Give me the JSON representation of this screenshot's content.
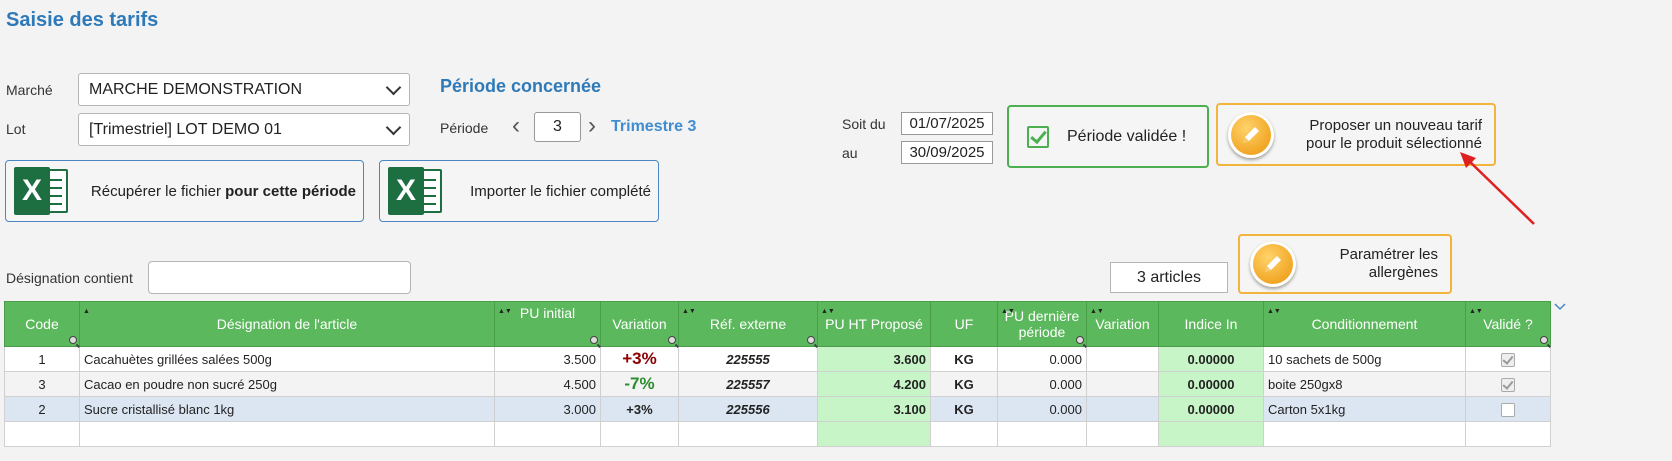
{
  "page": {
    "title": "Saisie des tarifs"
  },
  "filters": {
    "marche_label": "Marché",
    "marche_value": "MARCHE DEMONSTRATION",
    "lot_label": "Lot",
    "lot_value": "[Trimestriel] LOT DEMO 01"
  },
  "period": {
    "section_title": "Période concernée",
    "periode_label": "Période",
    "periode_value": "3",
    "trimestre": "Trimestre 3",
    "soit_du_label": "Soit du",
    "date_from": "01/07/2025",
    "au_label": "au",
    "date_to": "30/09/2025"
  },
  "buttons": {
    "recuperer_prefix": "Récupérer le fichier ",
    "recuperer_bold": "pour cette période",
    "importer": "Importer le fichier complété",
    "periode_validee": "Période validée !",
    "proposer_line1": "Proposer un nouveau tarif",
    "proposer_line2": "pour le produit sélectionné",
    "parametrer_line1": "Paramétrer les",
    "parametrer_line2": "allergènes"
  },
  "search": {
    "designation_label": "Désignation contient",
    "designation_value": "",
    "count": "3 articles"
  },
  "colors": {
    "accent": "#2e7ab8",
    "header_green": "#5cb85c",
    "arrow_red": "#e02020"
  },
  "table": {
    "headers": {
      "code": "Code",
      "designation": "Désignation de l'article",
      "pu_initial": "PU initial",
      "variation": "Variation",
      "ref_externe": "Réf. externe",
      "pu_ht_propose": "PU HT Proposé",
      "uf": "UF",
      "pu_derniere_line1": "PU dernière",
      "pu_derniere_line2": "période",
      "variation2": "Variation",
      "indice_in": "Indice In",
      "conditionnement": "Conditionnement",
      "valide": "Validé ?"
    },
    "rows": [
      {
        "code": "1",
        "designation": "Cacahuètes grillées salées 500g",
        "pu_initial": "3.500",
        "variation": "+3%",
        "ref_externe": "225555",
        "pu_ht_propose": "3.600",
        "uf": "KG",
        "pu_derniere": "0.000",
        "variation2": "",
        "indice_in": "0.00000",
        "conditionnement": "10 sachets de 500g",
        "valide": true
      },
      {
        "code": "3",
        "designation": "Cacao en poudre non sucré 250g",
        "pu_initial": "4.500",
        "variation": "-7%",
        "ref_externe": "225557",
        "pu_ht_propose": "4.200",
        "uf": "KG",
        "pu_derniere": "0.000",
        "variation2": "",
        "indice_in": "0.00000",
        "conditionnement": "boite 250gx8",
        "valide": true
      },
      {
        "code": "2",
        "designation": "Sucre cristallisé blanc 1kg",
        "pu_initial": "3.000",
        "variation": "+3%",
        "ref_externe": "225556",
        "pu_ht_propose": "3.100",
        "uf": "KG",
        "pu_derniere": "0.000",
        "variation2": "",
        "indice_in": "0.00000",
        "conditionnement": "Carton 5x1kg",
        "valide": false
      }
    ]
  }
}
